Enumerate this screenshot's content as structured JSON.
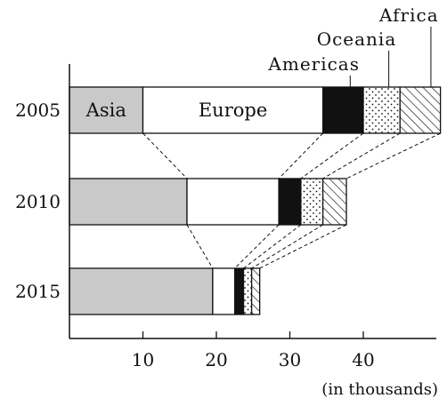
{
  "chart_data": {
    "type": "bar",
    "orientation": "horizontal",
    "stacked": true,
    "categories": [
      "2005",
      "2010",
      "2015"
    ],
    "series": [
      {
        "name": "Asia",
        "values": [
          10,
          16,
          19.5
        ],
        "color": "#c9c9c9",
        "fill": "solid"
      },
      {
        "name": "Europe",
        "values": [
          24.5,
          12.5,
          3
        ],
        "color": "#ffffff",
        "fill": "solid"
      },
      {
        "name": "Americas",
        "values": [
          5.5,
          3,
          1.2
        ],
        "color": "#111111",
        "fill": "solid"
      },
      {
        "name": "Oceania",
        "values": [
          5,
          3,
          1.1
        ],
        "color": "#ffffff",
        "fill": "dots"
      },
      {
        "name": "Africa",
        "values": [
          5.5,
          3.2,
          1.1
        ],
        "color": "#ffffff",
        "fill": "hatch"
      }
    ],
    "xlim": [
      0,
      50
    ],
    "xticks": [
      10,
      20,
      30,
      40
    ],
    "unit_label": "(in thousands)",
    "connector_lines": "dashed",
    "inline_labels": [
      "Asia",
      "Europe"
    ],
    "callout_labels": [
      "Americas",
      "Oceania",
      "Africa"
    ]
  }
}
